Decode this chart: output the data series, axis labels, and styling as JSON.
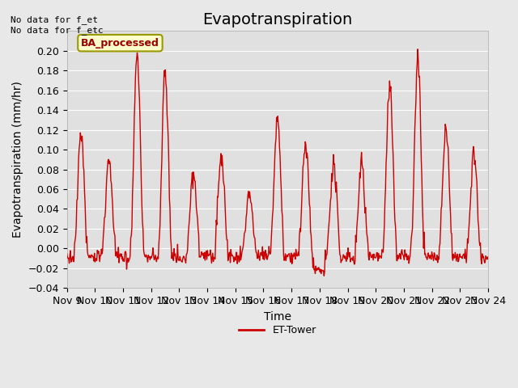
{
  "title": "Evapotranspiration",
  "ylabel": "Evapotranspiration (mm/hr)",
  "xlabel": "Time",
  "annotation_text": "No data for f_et\nNo data for f_etc",
  "legend_label": "ET-Tower",
  "legend_line_color": "#cc0000",
  "box_label": "BA_processed",
  "box_facecolor": "#ffffcc",
  "box_edgecolor": "#999900",
  "box_text_color": "#990000",
  "ylim": [
    -0.04,
    0.22
  ],
  "yticks": [
    -0.04,
    -0.02,
    0.0,
    0.02,
    0.04,
    0.06,
    0.08,
    0.1,
    0.12,
    0.14,
    0.16,
    0.18,
    0.2
  ],
  "background_color": "#e8e8e8",
  "axes_bg_color": "#e0e0e0",
  "grid_color": "#ffffff",
  "line_color": "#cc0000",
  "line_width": 1.0,
  "title_fontsize": 14,
  "tick_label_fontsize": 9,
  "axis_label_fontsize": 10,
  "xtick_labels": [
    "Nov 9",
    "Nov 10",
    "Nov 11",
    "Nov 12",
    "Nov 13",
    "Nov 14",
    "Nov 15",
    "Nov 16",
    "Nov 17",
    "Nov 18",
    "Nov 19",
    "Nov 20",
    "Nov 21",
    "Nov 22",
    "Nov 23",
    "Nov 24"
  ],
  "num_days": 15,
  "start_day": 9,
  "daily_peaks": [
    0.115,
    0.09,
    0.195,
    0.175,
    0.075,
    0.095,
    0.055,
    0.13,
    0.105,
    0.085,
    0.085,
    0.165,
    0.19,
    0.12,
    0.095
  ]
}
